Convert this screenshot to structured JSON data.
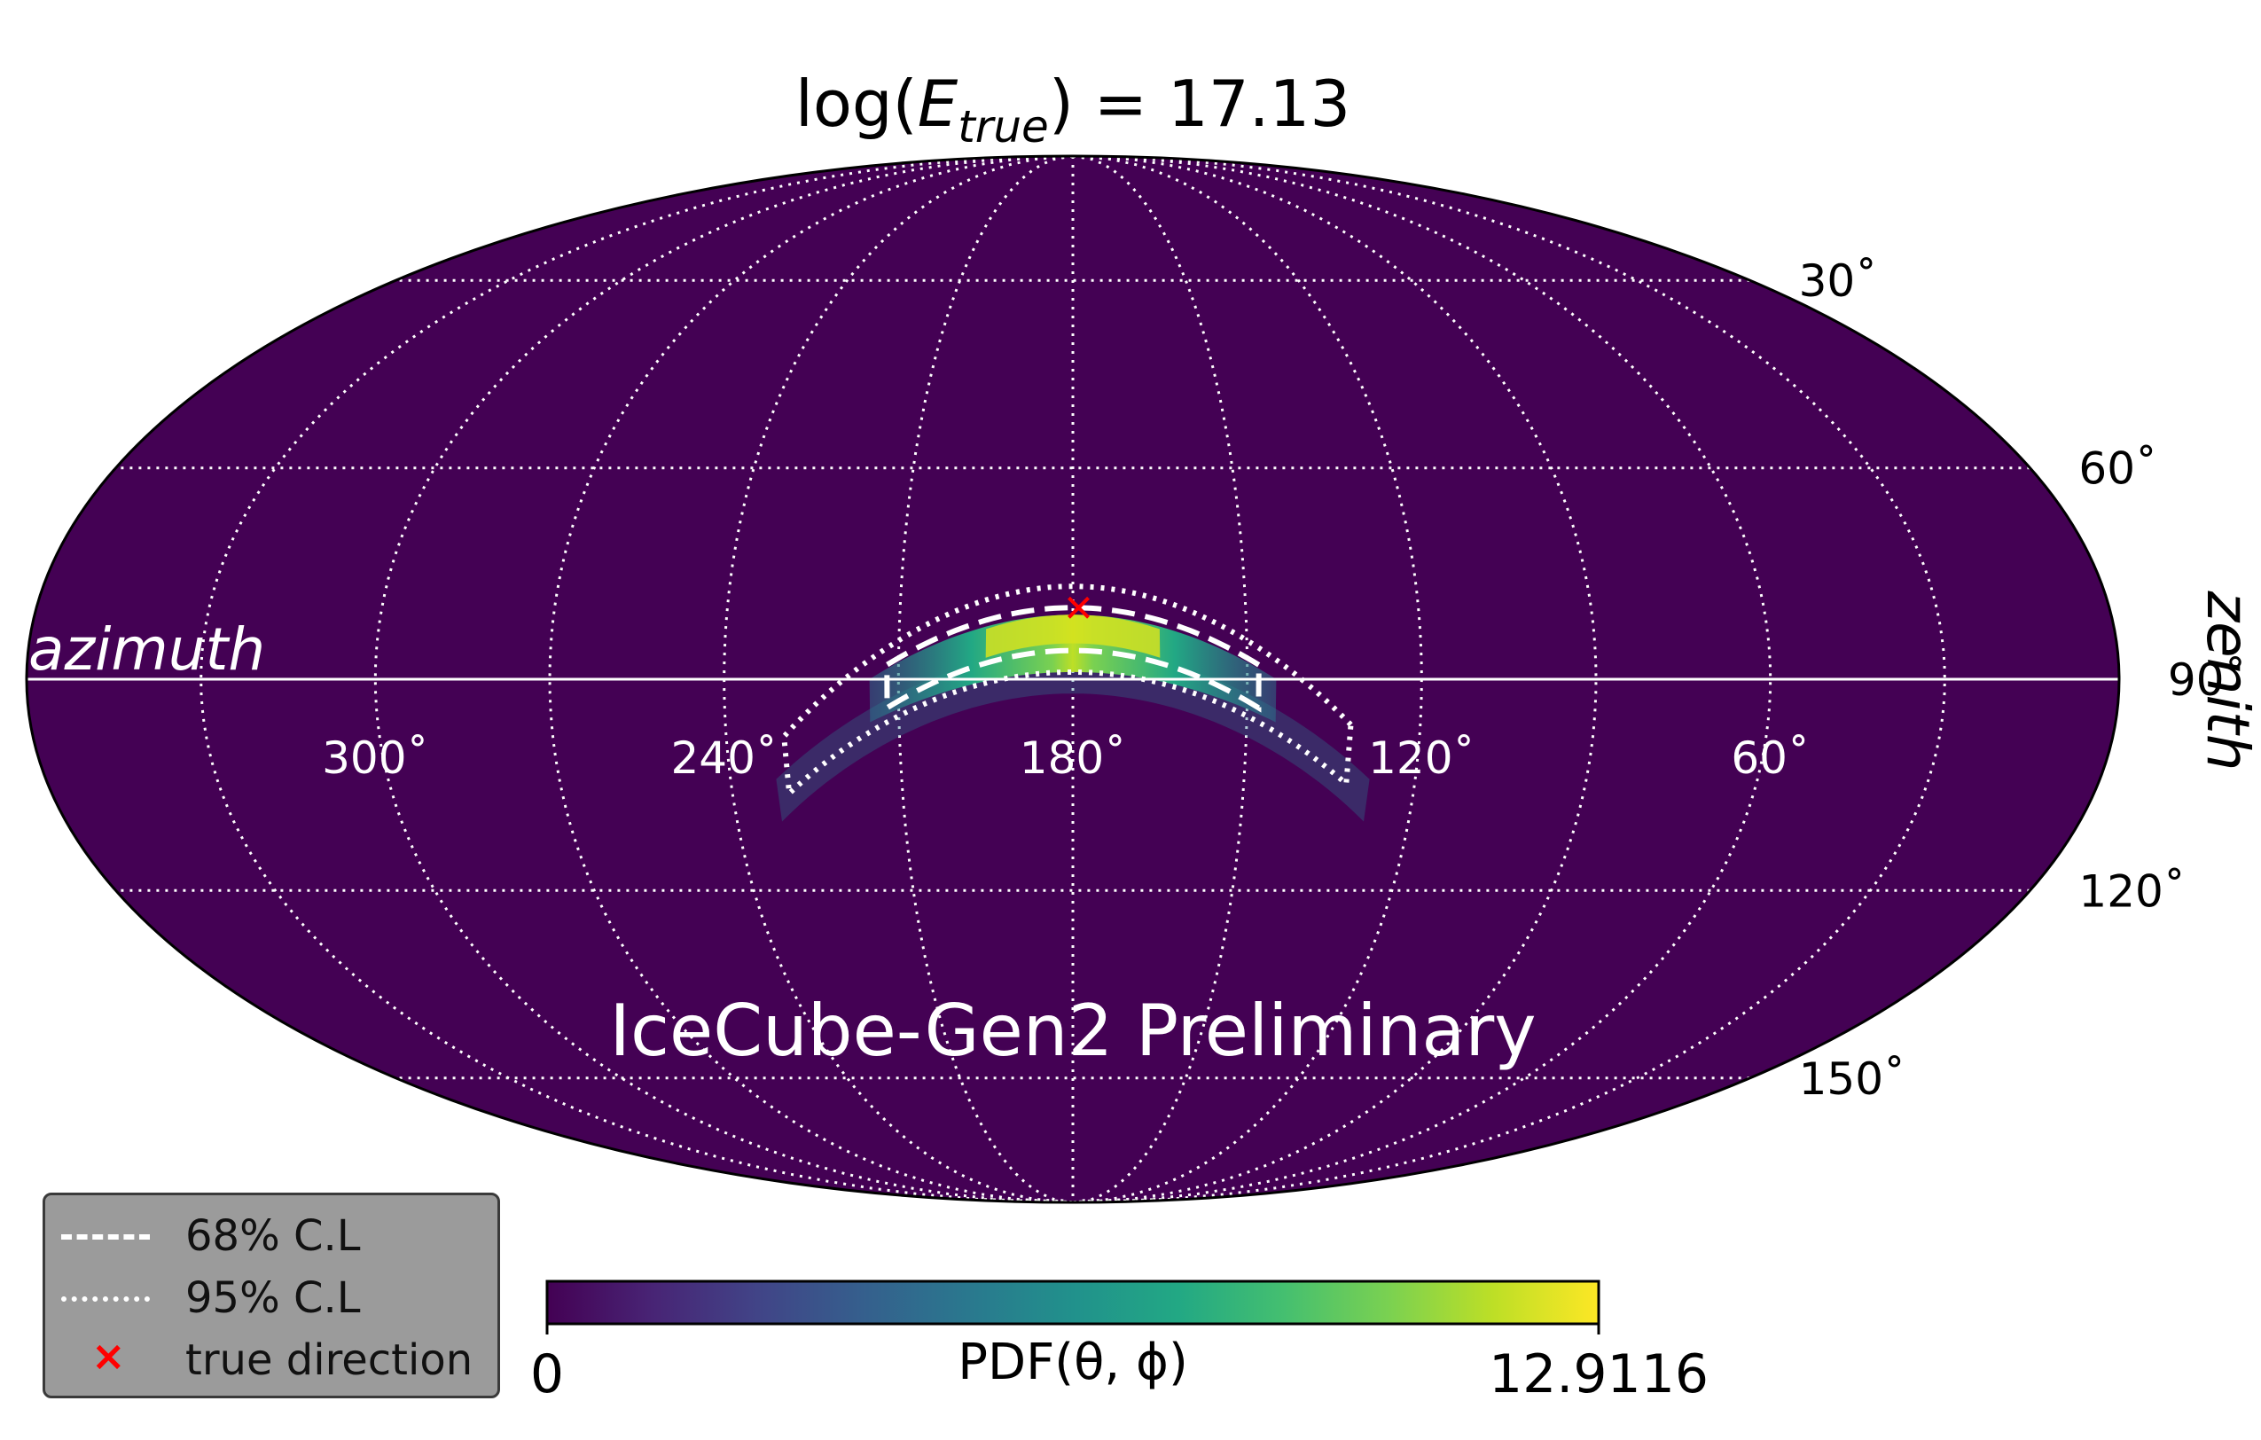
{
  "chart_data": {
    "type": "heatmap",
    "projection": "mollweide",
    "title": "log(E_true) = 17.13",
    "title_parts": {
      "prefix": "log(",
      "symbol": "E",
      "subscript": "true",
      "suffix": ") = 17.13"
    },
    "watermark": "IceCube-Gen2 Preliminary",
    "xlabel": "azimuth",
    "ylabel": "zenith",
    "x_tick_labels": [
      "300˚",
      "240˚",
      "180˚",
      "120˚",
      "60˚"
    ],
    "x_tick_values_deg": [
      300,
      240,
      180,
      120,
      60
    ],
    "y_tick_labels": [
      "30˚",
      "60˚",
      "90˚",
      "120˚",
      "150˚"
    ],
    "y_tick_values_deg": [
      30,
      60,
      90,
      120,
      150
    ],
    "grid": true,
    "colormap": "viridis",
    "colorbar": {
      "label": "PDF(θ, ϕ)",
      "min_label": "0",
      "max_label": "12.9116",
      "min": 0,
      "max": 12.9116
    },
    "true_direction": {
      "azimuth_deg": 179,
      "zenith_deg": 80
    },
    "pdf_peak": {
      "azimuth_deg": 179,
      "zenith_deg": 82,
      "value": 12.9116
    },
    "contours": [
      {
        "name": "68% C.L",
        "style": "dashed",
        "azimuth_range_deg": [
          148,
          212
        ],
        "zenith_range_deg": [
          80,
          94
        ]
      },
      {
        "name": "95% C.L",
        "style": "dotted",
        "azimuth_range_deg": [
          132,
          230
        ],
        "zenith_range_deg": [
          77,
          106
        ]
      }
    ],
    "legend": {
      "position": "lower-left",
      "entries": [
        {
          "label": "68% C.L",
          "style": "dashed",
          "color": "#ffffff"
        },
        {
          "label": "95% C.L",
          "style": "dotted",
          "color": "#ffffff"
        },
        {
          "label": "true direction",
          "style": "x-marker",
          "color": "#ff0000"
        }
      ]
    },
    "colors": {
      "background": "#440154",
      "grid": "#ffffff",
      "marker": "#ff0000"
    }
  }
}
